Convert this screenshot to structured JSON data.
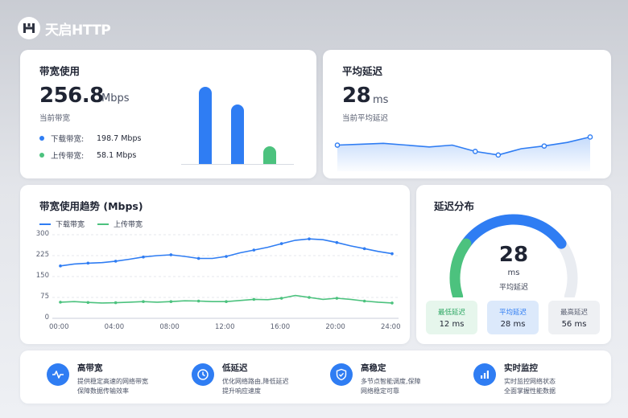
{
  "brand": {
    "name": "天启HTTP"
  },
  "bandwidth": {
    "title": "带宽使用",
    "value": "256.8",
    "unit": "Mbps",
    "subtitle": "当前带宽",
    "download_label": "下载带宽:",
    "download_value": "198.7 Mbps",
    "upload_label": "上传带宽:",
    "upload_value": "58.1 Mbps"
  },
  "latency_card": {
    "title": "平均延迟",
    "value": "28",
    "unit": "ms",
    "subtitle": "当前平均延迟"
  },
  "trend": {
    "title": "带宽使用趋势 (Mbps)",
    "legend_download": "下载带宽",
    "legend_upload": "上传带宽"
  },
  "distribution": {
    "title": "延迟分布",
    "value": "28",
    "unit": "ms",
    "label": "平均延迟",
    "min_label": "最低延迟",
    "min_value": "12 ms",
    "avg_label": "平均延迟",
    "avg_value": "28 ms",
    "max_label": "最高延迟",
    "max_value": "56 ms"
  },
  "features": [
    {
      "title": "高带宽",
      "line1": "提供稳定高速的网络带宽",
      "line2": "保障数据传输效率",
      "icon": "pulse-icon"
    },
    {
      "title": "低延迟",
      "line1": "优化网络路由,降低延迟",
      "line2": "提升响应速度",
      "icon": "clock-icon"
    },
    {
      "title": "高稳定",
      "line1": "多节点智能调度,保障",
      "line2": "网络稳定可靠",
      "icon": "shield-check-icon"
    },
    {
      "title": "实时监控",
      "line1": "实时监控网络状态",
      "line2": "全面掌握性能数据",
      "icon": "bar-chart-icon"
    }
  ],
  "colors": {
    "blue": "#2f7df3",
    "green": "#4cc27e",
    "light_blue": "#dce9fb",
    "gray": "#e9ecf1"
  },
  "chart_data": [
    {
      "type": "bar",
      "categories": [
        "",
        "",
        ""
      ],
      "values": [
        256.8,
        198.7,
        58.1
      ],
      "colors": [
        "#2f7df3",
        "#2f7df3",
        "#4cc27e"
      ],
      "ylim": [
        0,
        256.8
      ]
    },
    {
      "type": "area",
      "x": [
        0,
        1,
        2,
        3,
        4,
        5,
        6,
        7,
        8,
        9,
        10,
        11
      ],
      "values": [
        29,
        30,
        31,
        29,
        27,
        29,
        22,
        18,
        25,
        28,
        32,
        38
      ],
      "ylim": [
        0,
        50
      ]
    },
    {
      "type": "line",
      "x": [
        "00:00",
        "01:00",
        "02:00",
        "03:00",
        "04:00",
        "05:00",
        "06:00",
        "07:00",
        "08:00",
        "09:00",
        "10:00",
        "11:00",
        "12:00",
        "13:00",
        "14:00",
        "15:00",
        "16:00",
        "17:00",
        "18:00",
        "19:00",
        "20:00",
        "21:00",
        "22:00",
        "23:00",
        "24:00"
      ],
      "xticks": [
        "00:00",
        "04:00",
        "08:00",
        "12:00",
        "16:00",
        "20:00",
        "24:00"
      ],
      "yticks": [
        0,
        75,
        150,
        225,
        300
      ],
      "ylim": [
        0,
        300
      ],
      "series": [
        {
          "name": "下载带宽",
          "color": "#2f7df3",
          "values": [
            188,
            195,
            198,
            200,
            205,
            212,
            220,
            225,
            228,
            222,
            215,
            215,
            222,
            235,
            245,
            255,
            268,
            280,
            285,
            282,
            272,
            260,
            250,
            240,
            232
          ]
        },
        {
          "name": "上传带宽",
          "color": "#4cc27e",
          "values": [
            58,
            60,
            57,
            55,
            56,
            58,
            60,
            58,
            60,
            63,
            62,
            60,
            60,
            64,
            68,
            67,
            72,
            82,
            75,
            68,
            72,
            68,
            62,
            58,
            55
          ]
        }
      ]
    },
    {
      "type": "gauge",
      "value": 28,
      "segments": [
        {
          "label": "最低延迟",
          "value": 12,
          "color": "#4cc27e"
        },
        {
          "label": "平均延迟",
          "value": 28,
          "color": "#2f7df3"
        },
        {
          "label": "最高延迟",
          "value": 56,
          "color": "#e9ecf1"
        }
      ]
    }
  ]
}
